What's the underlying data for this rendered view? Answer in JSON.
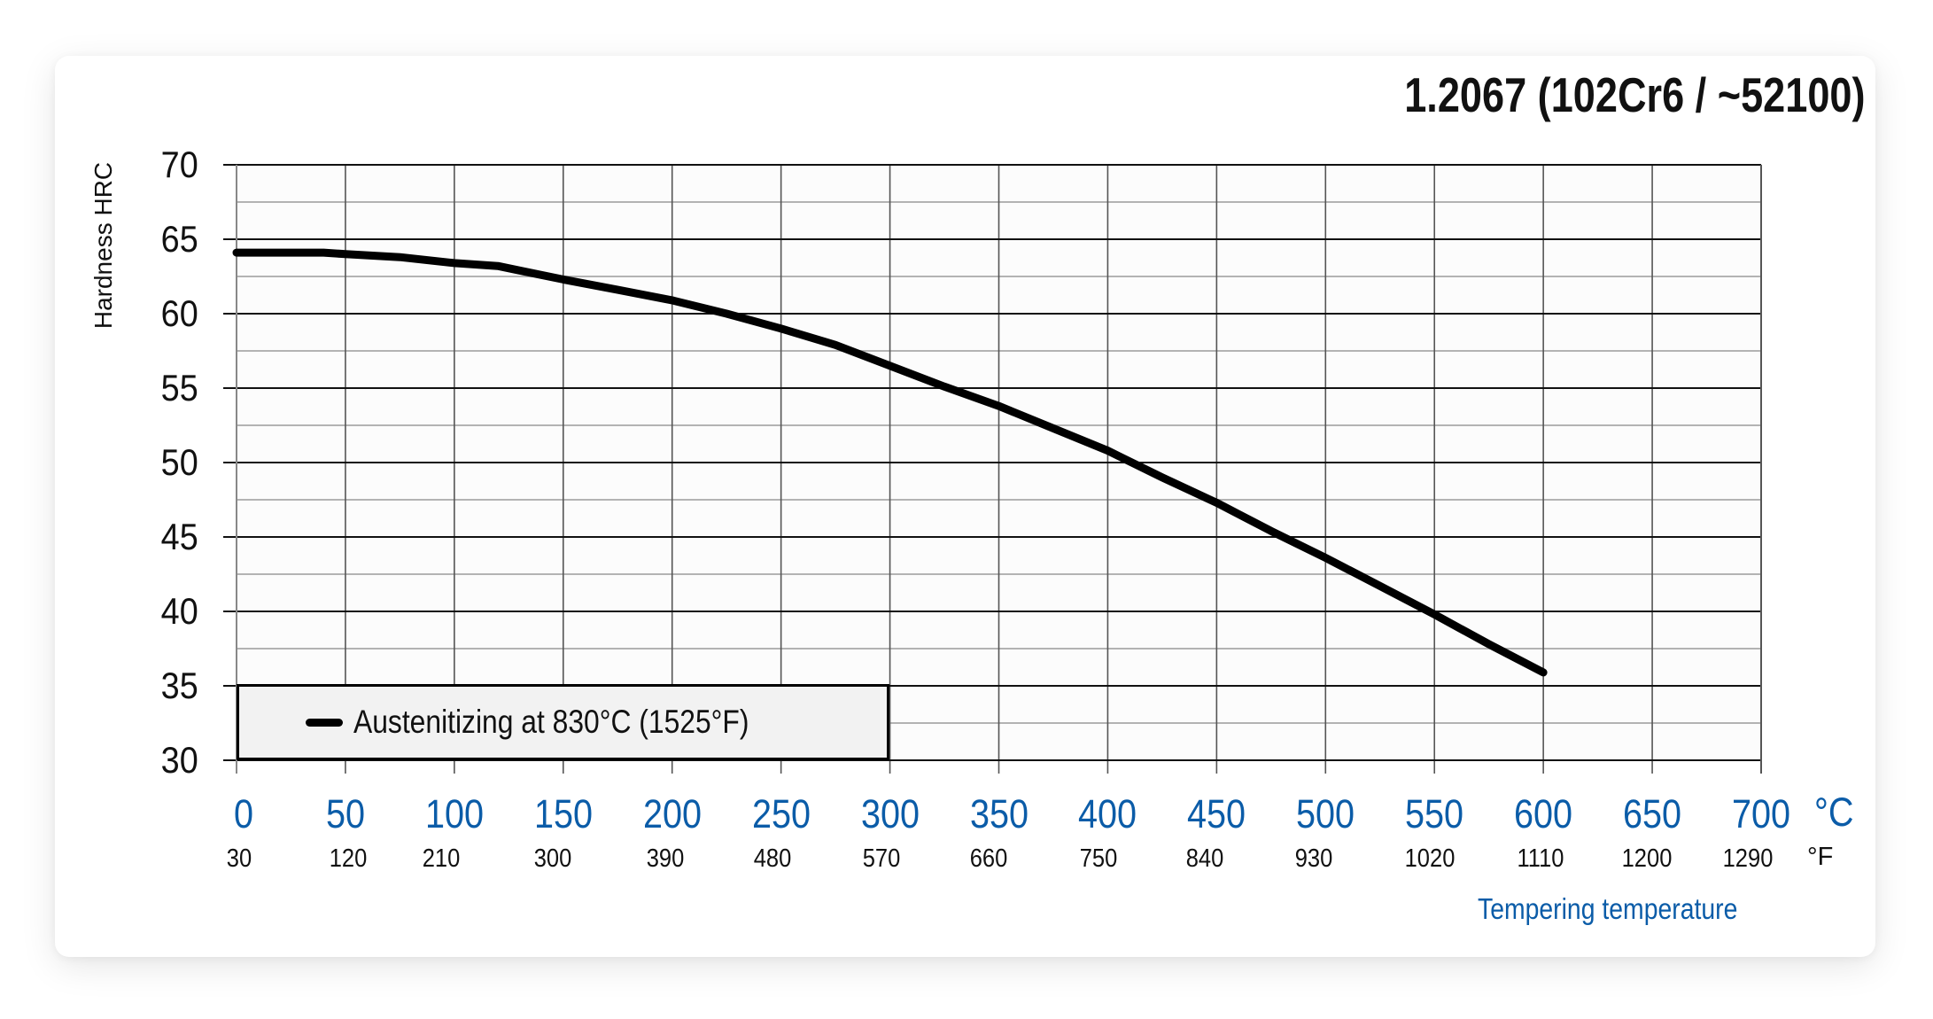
{
  "chart_data": {
    "type": "line",
    "title": "1.2067 (102Cr6 / ~52100)",
    "xlabel": "Tempering temperature",
    "ylabel": "Hardness HRC",
    "xlim": [
      0,
      700
    ],
    "ylim": [
      30,
      70
    ],
    "grid": true,
    "x_unit_primary": "°C",
    "x_unit_secondary": "°F",
    "x_ticks_c": [
      "0",
      "50",
      "100",
      "150",
      "200",
      "250",
      "300",
      "350",
      "400",
      "450",
      "500",
      "550",
      "600",
      "650",
      "700"
    ],
    "x_ticks_f": [
      "30",
      "120",
      "210",
      "300",
      "390",
      "480",
      "570",
      "660",
      "750",
      "840",
      "930",
      "1020",
      "1110",
      "1200",
      "1290"
    ],
    "y_ticks": [
      "70",
      "65",
      "60",
      "55",
      "50",
      "45",
      "40",
      "35",
      "30"
    ],
    "legend_position": "lower-left",
    "series": [
      {
        "name": "Austenitizing at 830°C (1525°F)",
        "color": "#000000",
        "x": [
          0,
          40,
          50,
          75,
          100,
          120,
          130,
          150,
          175,
          200,
          225,
          250,
          275,
          300,
          325,
          350,
          375,
          400,
          425,
          450,
          475,
          500,
          525,
          550,
          575,
          600
        ],
        "y": [
          64.1,
          64.1,
          64.0,
          63.8,
          63.4,
          63.2,
          62.9,
          62.3,
          61.6,
          60.9,
          60.0,
          59.0,
          57.9,
          56.5,
          55.1,
          53.8,
          52.3,
          50.8,
          49.0,
          47.3,
          45.4,
          43.6,
          41.7,
          39.8,
          37.8,
          35.9
        ]
      }
    ]
  },
  "colors": {
    "axis_label_blue": "#0b5ca8",
    "line": "#000000",
    "legend_bg": "#f2f2f2",
    "plot_bg": "#fcfcfc"
  }
}
